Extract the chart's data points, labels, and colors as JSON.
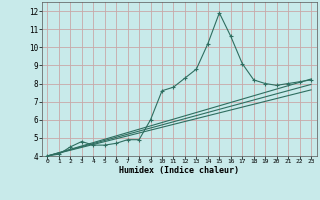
{
  "xlabel": "Humidex (Indice chaleur)",
  "ylabel": "",
  "bg_color": "#c8eaea",
  "grid_color": "#c8a8a8",
  "line_color": "#2e6e60",
  "xlim": [
    -0.5,
    23.5
  ],
  "ylim": [
    4,
    12.5
  ],
  "xticks": [
    0,
    1,
    2,
    3,
    4,
    5,
    6,
    7,
    8,
    9,
    10,
    11,
    12,
    13,
    14,
    15,
    16,
    17,
    18,
    19,
    20,
    21,
    22,
    23
  ],
  "yticks": [
    4,
    5,
    6,
    7,
    8,
    9,
    10,
    11,
    12
  ],
  "series_with_markers": {
    "x": [
      0,
      1,
      2,
      3,
      4,
      5,
      6,
      7,
      8,
      9,
      10,
      11,
      12,
      13,
      14,
      15,
      16,
      17,
      18,
      19,
      20,
      21,
      22,
      23
    ],
    "y": [
      4.0,
      4.1,
      4.5,
      4.8,
      4.6,
      4.6,
      4.7,
      4.9,
      4.9,
      6.0,
      7.6,
      7.8,
      8.3,
      8.8,
      10.2,
      11.9,
      10.6,
      9.1,
      8.2,
      8.0,
      7.9,
      8.0,
      8.1,
      8.2
    ]
  },
  "straight_lines": [
    {
      "x": [
        0,
        23
      ],
      "y": [
        4.0,
        8.25
      ]
    },
    {
      "x": [
        0,
        23
      ],
      "y": [
        4.0,
        7.95
      ]
    },
    {
      "x": [
        0,
        23
      ],
      "y": [
        4.0,
        7.65
      ]
    }
  ]
}
